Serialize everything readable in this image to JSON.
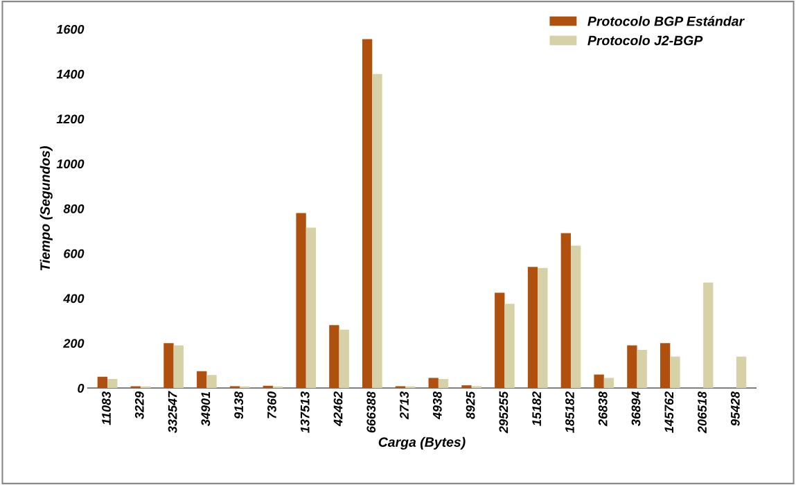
{
  "chart_data": {
    "type": "bar",
    "xlabel": "Carga (Bytes)",
    "ylabel": "Tiempo (Segundos)",
    "categories": [
      "11083",
      "3229",
      "332547",
      "34901",
      "9138",
      "7360",
      "137513",
      "42462",
      "666388",
      "2713",
      "4938",
      "8925",
      "295255",
      "15182",
      "185182",
      "26838",
      "36894",
      "145762",
      "206518",
      "95428"
    ],
    "series": [
      {
        "name": "Protocolo BGP Estándar",
        "color": "#b0500f",
        "values": [
          50,
          8,
          200,
          75,
          8,
          10,
          780,
          280,
          1555,
          8,
          45,
          12,
          425,
          540,
          690,
          60,
          190,
          200,
          null,
          null
        ]
      },
      {
        "name": "Protocolo J2-BGP",
        "color": "#d6d1a6",
        "values": [
          40,
          7,
          190,
          58,
          7,
          7,
          715,
          260,
          1400,
          7,
          40,
          8,
          375,
          535,
          635,
          45,
          170,
          140,
          470,
          140
        ]
      }
    ],
    "ylim": [
      0,
      1600
    ],
    "yticks": [
      0,
      200,
      400,
      600,
      800,
      1000,
      1200,
      1400,
      1600
    ],
    "grid": false,
    "legend": "top right"
  }
}
